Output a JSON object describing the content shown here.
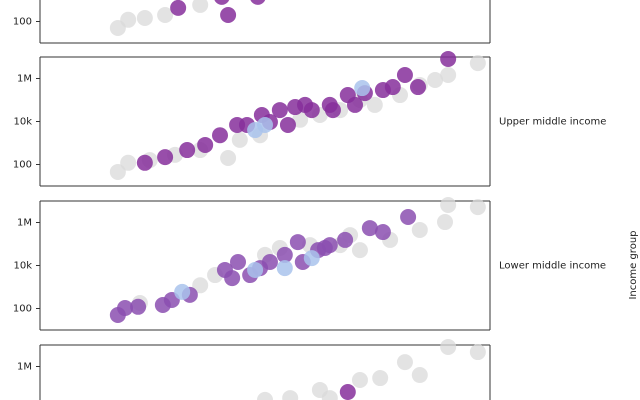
{
  "facet_title": "Income group",
  "chart_data": [
    {
      "type": "scatter",
      "log_y": true,
      "xlim": [
        0,
        100
      ],
      "ylim": [
        10,
        10000000
      ],
      "yticks": [
        100
      ],
      "groups": [
        {
          "color": "#d9d9d9",
          "x": [
            17.3,
            19.6,
            23.3,
            27.8,
            35.6
          ],
          "y": [
            50,
            120,
            145,
            200,
            590
          ]
        },
        {
          "color": "#862f9b",
          "x": [
            30.7,
            41.8,
            48.4,
            40.4
          ],
          "y": [
            430,
            200,
            1400,
            1400
          ]
        }
      ]
    },
    {
      "type": "scatter",
      "facet": "Upper middle income",
      "log_y": true,
      "xlim": [
        0,
        100
      ],
      "ylim": [
        10,
        10000000
      ],
      "yticks": [
        100,
        {
          "value": 10000,
          "label": "10k"
        },
        {
          "value": 1000000,
          "label": "1M"
        }
      ],
      "groups": [
        {
          "color": "#d9d9d9",
          "x": [
            17.3,
            19.6,
            24.4,
            30,
            35.6,
            41.8,
            44.4,
            48.9,
            57.8,
            62.2,
            66.7,
            71.1,
            74.4,
            80,
            84.4,
            87.8,
            90.7,
            97.3
          ],
          "y": [
            45,
            120,
            160,
            280,
            470,
            200,
            1400,
            2300,
            12000,
            20000,
            34000,
            100000,
            59000,
            170000,
            500000,
            850000,
            1450000,
            5200000
          ]
        },
        {
          "color": "#862f9b",
          "x": [
            23.3,
            27.8,
            32.7,
            36.7,
            40,
            43.8,
            46,
            49.3,
            51.1,
            53.3,
            55.1,
            56.7,
            58.9,
            60.4,
            64.4,
            65.1,
            68.4,
            70,
            72.2,
            76.2,
            78.4,
            81.1,
            84,
            90.7
          ],
          "y": [
            120,
            220,
            470,
            810,
            2300,
            6900,
            6900,
            20000,
            9500,
            34000,
            6900,
            47000,
            59000,
            34000,
            59000,
            34000,
            170000,
            59000,
            210000,
            290000,
            400000,
            1450000,
            400000,
            8100000
          ]
        },
        {
          "color": "#a9c3ec",
          "x": [
            47.8,
            50,
            71.6
          ],
          "y": [
            4000,
            6900,
            360000
          ]
        }
      ]
    },
    {
      "type": "scatter",
      "facet": "Lower middle income",
      "log_y": true,
      "xlim": [
        0,
        100
      ],
      "ylim": [
        10,
        10000000
      ],
      "yticks": [
        100,
        {
          "value": 10000,
          "label": "10k"
        },
        {
          "value": 1000000,
          "label": "1M"
        }
      ],
      "groups": [
        {
          "color": "#d9d9d9",
          "x": [
            22.2,
            35.6,
            38.9,
            50,
            53.3,
            60,
            66.7,
            71.1,
            77.8,
            84.4,
            90,
            90.7,
            97.3,
            68.9
          ],
          "y": [
            180,
            1200,
            3600,
            31000,
            65000,
            89000,
            89000,
            52000,
            155000,
            450000,
            1050000,
            6500000,
            5200000,
            260000
          ]
        },
        {
          "color": "#8b4fb0",
          "x": [
            17.3,
            18.9,
            21.8,
            27.3,
            29.3,
            33.3,
            41.1,
            44,
            42.7,
            46.7,
            48.9,
            51.1,
            54.4,
            57.3,
            58.4,
            61.8,
            63.3,
            67.8,
            64.4,
            73.3,
            76.2,
            81.8
          ],
          "y": [
            50,
            105,
            120,
            145,
            250,
            430,
            6200,
            14500,
            2600,
            3600,
            7600,
            14500,
            31000,
            123000,
            14500,
            52000,
            65000,
            155000,
            89000,
            550000,
            360000,
            1800000
          ]
        },
        {
          "color": "#a9c3ec",
          "x": [
            47.8,
            54.4,
            60.4,
            31.6
          ],
          "y": [
            6200,
            7600,
            22000,
            590
          ]
        }
      ]
    },
    {
      "type": "scatter",
      "log_y": true,
      "xlim": [
        0,
        100
      ],
      "ylim": [
        10,
        10000000
      ],
      "yticks": [
        {
          "value": 1000000,
          "label": "1M"
        }
      ],
      "groups": [
        {
          "color": "#d9d9d9",
          "x": [
            50,
            55.6,
            62.2,
            71.1,
            75.6,
            81.1,
            84.4,
            90.7,
            97.3,
            64.4
          ],
          "y": [
            28000,
            34000,
            81000,
            235000,
            290000,
            1600000,
            400000,
            8100000,
            4700000,
            34000
          ]
        },
        {
          "color": "#862f9b",
          "x": [
            68.4
          ],
          "y": [
            65000
          ]
        }
      ]
    }
  ]
}
